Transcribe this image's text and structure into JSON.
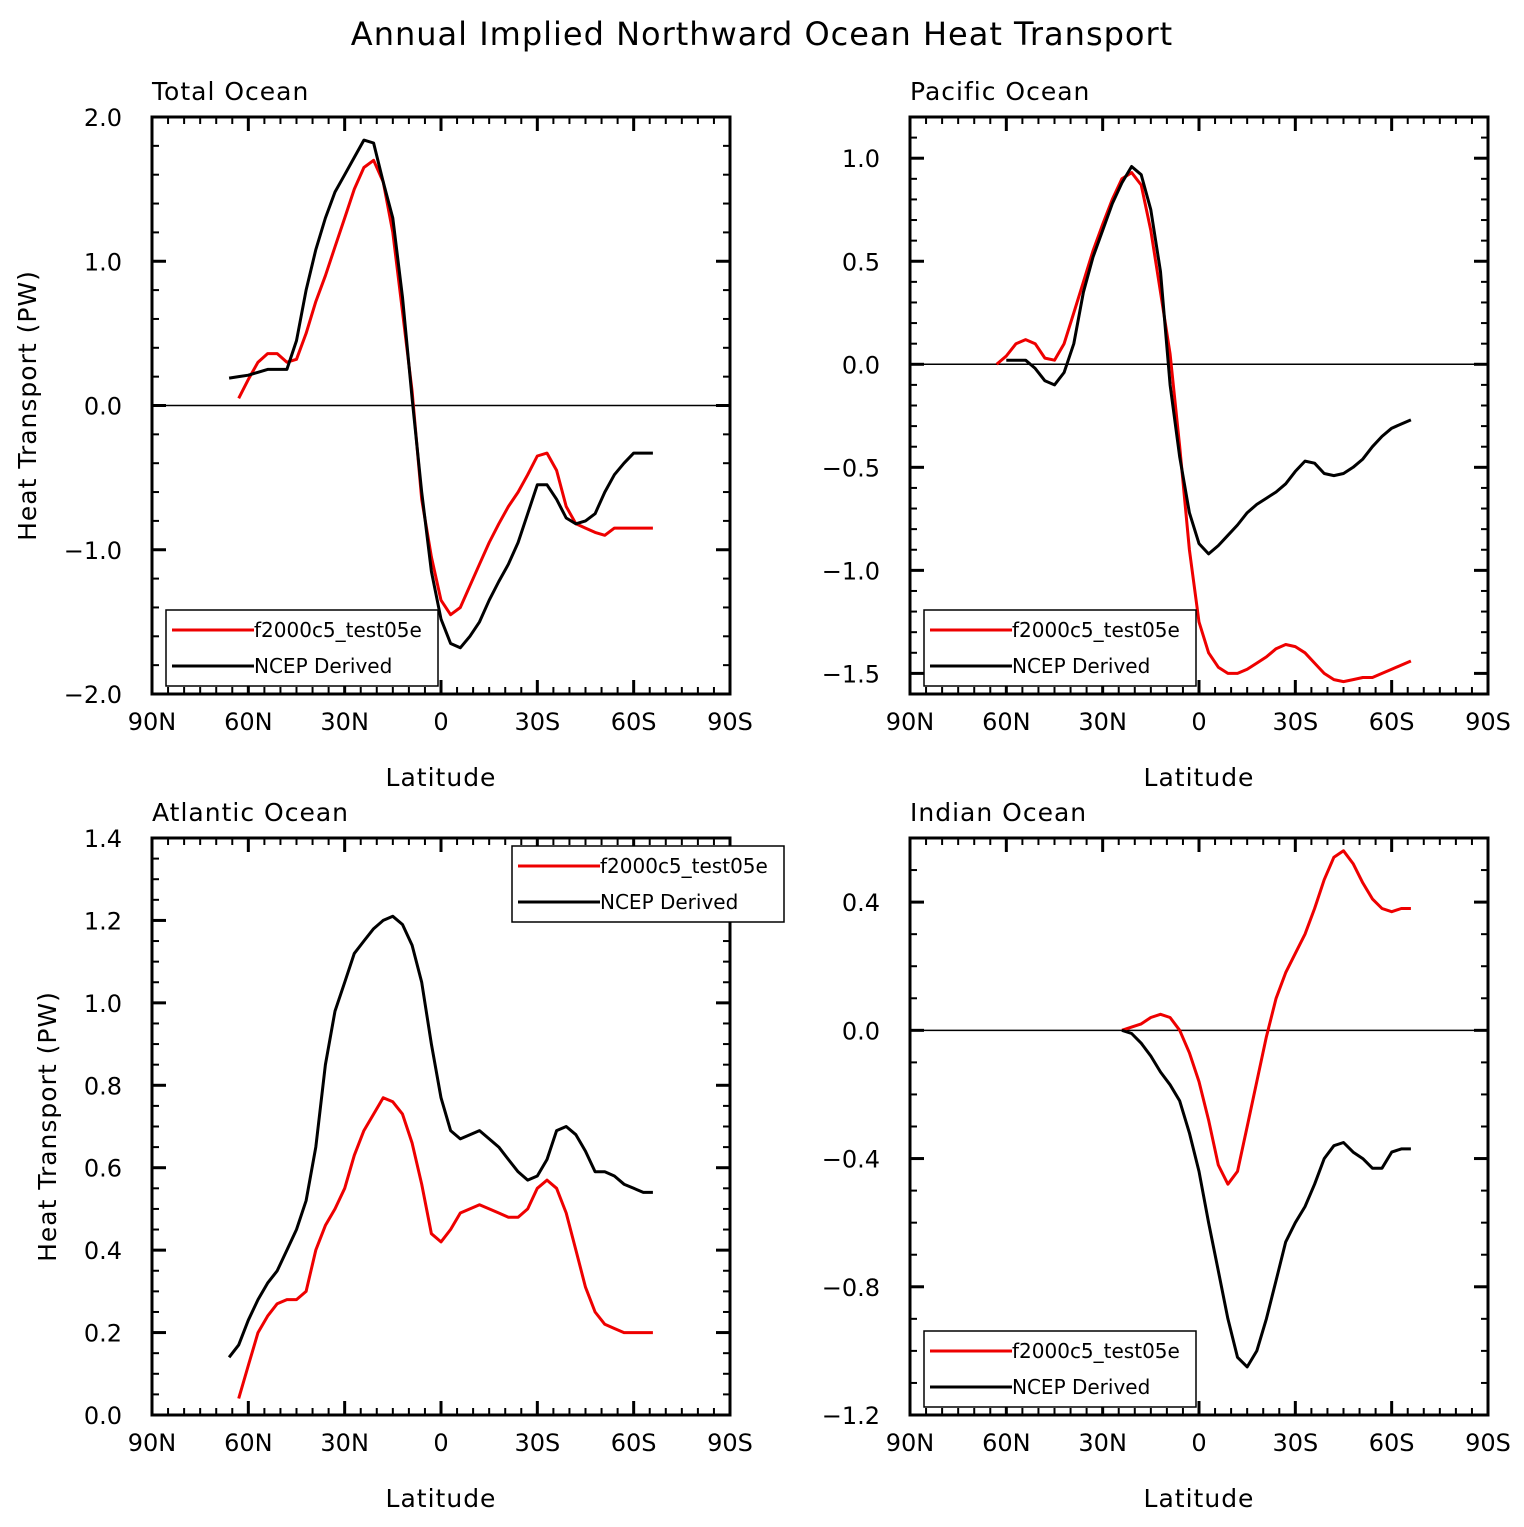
{
  "title": "Annual Implied Northward Ocean Heat Transport",
  "colors": {
    "model": "#ee0000",
    "obs": "#000000"
  },
  "chart_data": [
    {
      "type": "line",
      "id": "total",
      "title": "Total Ocean",
      "xlabel": "Latitude",
      "ylabel": "Heat Transport (PW)",
      "xlim": [
        90,
        -90
      ],
      "ylim": [
        -2.0,
        2.0
      ],
      "xticks": [
        90,
        60,
        30,
        0,
        -30,
        -60,
        -90
      ],
      "xtick_labels": [
        "90N",
        "60N",
        "30N",
        "0",
        "30S",
        "60S",
        "90S"
      ],
      "yticks": [
        -2.0,
        -1.0,
        0.0,
        1.0,
        2.0
      ],
      "ytick_labels": [
        "−2.0",
        "−1.0",
        "0.0",
        "1.0",
        "2.0"
      ],
      "y_minor": 0.2,
      "legend_position": "bottom-left",
      "series": [
        {
          "name": "f2000c5_test05e",
          "color": "#ee0000",
          "x": [
            63,
            60,
            57,
            54,
            51,
            48,
            45,
            42,
            39,
            36,
            33,
            30,
            27,
            24,
            21,
            18,
            15,
            12,
            9,
            6,
            3,
            0,
            -3,
            -6,
            -9,
            -12,
            -15,
            -18,
            -21,
            -24,
            -27,
            -30,
            -33,
            -36,
            -39,
            -42,
            -45,
            -48,
            -51,
            -54,
            -57,
            -60,
            -63,
            -66
          ],
          "y": [
            0.05,
            0.18,
            0.3,
            0.36,
            0.36,
            0.3,
            0.32,
            0.5,
            0.72,
            0.9,
            1.1,
            1.3,
            1.5,
            1.65,
            1.7,
            1.55,
            1.2,
            0.65,
            0.1,
            -0.65,
            -1.05,
            -1.35,
            -1.45,
            -1.4,
            -1.25,
            -1.1,
            -0.95,
            -0.82,
            -0.7,
            -0.6,
            -0.48,
            -0.35,
            -0.33,
            -0.45,
            -0.7,
            -0.82,
            -0.85,
            -0.88,
            -0.9,
            -0.85,
            -0.85,
            -0.85,
            -0.85,
            -0.85
          ]
        },
        {
          "name": "NCEP Derived",
          "color": "#000000",
          "x": [
            66,
            63,
            60,
            57,
            54,
            51,
            48,
            45,
            42,
            39,
            36,
            33,
            30,
            27,
            24,
            21,
            18,
            15,
            12,
            9,
            6,
            3,
            0,
            -3,
            -6,
            -9,
            -12,
            -15,
            -18,
            -21,
            -24,
            -27,
            -30,
            -33,
            -36,
            -39,
            -42,
            -45,
            -48,
            -51,
            -54,
            -57,
            -60,
            -63,
            -66
          ],
          "y": [
            0.19,
            0.2,
            0.21,
            0.23,
            0.25,
            0.25,
            0.25,
            0.45,
            0.8,
            1.08,
            1.3,
            1.48,
            1.6,
            1.72,
            1.84,
            1.82,
            1.55,
            1.3,
            0.75,
            0.05,
            -0.6,
            -1.15,
            -1.48,
            -1.65,
            -1.68,
            -1.6,
            -1.5,
            -1.35,
            -1.22,
            -1.1,
            -0.95,
            -0.75,
            -0.55,
            -0.55,
            -0.65,
            -0.78,
            -0.82,
            -0.8,
            -0.75,
            -0.6,
            -0.48,
            -0.4,
            -0.33,
            -0.33,
            -0.33
          ]
        }
      ]
    },
    {
      "type": "line",
      "id": "pacific",
      "title": "Pacific Ocean",
      "xlabel": "Latitude",
      "ylabel": "",
      "xlim": [
        90,
        -90
      ],
      "ylim": [
        -1.6,
        1.2
      ],
      "xticks": [
        90,
        60,
        30,
        0,
        -30,
        -60,
        -90
      ],
      "xtick_labels": [
        "90N",
        "60N",
        "30N",
        "0",
        "30S",
        "60S",
        "90S"
      ],
      "yticks": [
        -1.5,
        -1.0,
        -0.5,
        0.0,
        0.5,
        1.0
      ],
      "ytick_labels": [
        "−1.5",
        "−1.0",
        "−0.5",
        "0.0",
        "0.5",
        "1.0"
      ],
      "y_minor": 0.1,
      "legend_position": "bottom-left",
      "series": [
        {
          "name": "f2000c5_test05e",
          "color": "#ee0000",
          "x": [
            63,
            60,
            57,
            54,
            51,
            48,
            45,
            42,
            39,
            36,
            33,
            30,
            27,
            24,
            21,
            18,
            15,
            12,
            9,
            6,
            3,
            0,
            -3,
            -6,
            -9,
            -12,
            -15,
            -18,
            -21,
            -24,
            -27,
            -30,
            -33,
            -36,
            -39,
            -42,
            -45,
            -48,
            -51,
            -54,
            -57,
            -60,
            -63,
            -66
          ],
          "y": [
            0.0,
            0.04,
            0.1,
            0.12,
            0.1,
            0.03,
            0.02,
            0.1,
            0.25,
            0.4,
            0.55,
            0.68,
            0.8,
            0.9,
            0.93,
            0.87,
            0.65,
            0.35,
            0.05,
            -0.4,
            -0.9,
            -1.25,
            -1.4,
            -1.47,
            -1.5,
            -1.5,
            -1.48,
            -1.45,
            -1.42,
            -1.38,
            -1.36,
            -1.37,
            -1.4,
            -1.45,
            -1.5,
            -1.53,
            -1.54,
            -1.53,
            -1.52,
            -1.52,
            -1.5,
            -1.48,
            -1.46,
            -1.44
          ]
        },
        {
          "name": "NCEP Derived",
          "color": "#000000",
          "x": [
            60,
            57,
            54,
            51,
            48,
            45,
            42,
            39,
            36,
            33,
            30,
            27,
            24,
            21,
            18,
            15,
            12,
            9,
            6,
            3,
            0,
            -3,
            -6,
            -9,
            -12,
            -15,
            -18,
            -21,
            -24,
            -27,
            -30,
            -33,
            -36,
            -39,
            -42,
            -45,
            -48,
            -51,
            -54,
            -57,
            -60,
            -63,
            -66
          ],
          "y": [
            0.02,
            0.02,
            0.02,
            -0.02,
            -0.08,
            -0.1,
            -0.04,
            0.1,
            0.35,
            0.52,
            0.65,
            0.78,
            0.88,
            0.96,
            0.92,
            0.75,
            0.45,
            -0.1,
            -0.45,
            -0.72,
            -0.87,
            -0.92,
            -0.88,
            -0.83,
            -0.78,
            -0.72,
            -0.68,
            -0.65,
            -0.62,
            -0.58,
            -0.52,
            -0.47,
            -0.48,
            -0.53,
            -0.54,
            -0.53,
            -0.5,
            -0.46,
            -0.4,
            -0.35,
            -0.31,
            -0.29,
            -0.27
          ]
        }
      ]
    },
    {
      "type": "line",
      "id": "atlantic",
      "title": "Atlantic Ocean",
      "xlabel": "Latitude",
      "ylabel": "Heat Transport (PW)",
      "xlim": [
        90,
        -90
      ],
      "ylim": [
        0.0,
        1.4
      ],
      "xticks": [
        90,
        60,
        30,
        0,
        -30,
        -60,
        -90
      ],
      "xtick_labels": [
        "90N",
        "60N",
        "30N",
        "0",
        "30S",
        "60S",
        "90S"
      ],
      "yticks": [
        0.0,
        0.2,
        0.4,
        0.6,
        0.8,
        1.0,
        1.2,
        1.4
      ],
      "ytick_labels": [
        "0.0",
        "0.2",
        "0.4",
        "0.6",
        "0.8",
        "1.0",
        "1.2",
        "1.4"
      ],
      "y_minor": 0.05,
      "legend_position": "top-right",
      "series": [
        {
          "name": "f2000c5_test05e",
          "color": "#ee0000",
          "x": [
            63,
            60,
            57,
            54,
            51,
            48,
            45,
            42,
            39,
            36,
            33,
            30,
            27,
            24,
            21,
            18,
            15,
            12,
            9,
            6,
            3,
            0,
            -3,
            -6,
            -9,
            -12,
            -15,
            -18,
            -21,
            -24,
            -27,
            -30,
            -33,
            -36,
            -39,
            -42,
            -45,
            -48,
            -51,
            -54,
            -57,
            -60,
            -63,
            -66
          ],
          "y": [
            0.04,
            0.12,
            0.2,
            0.24,
            0.27,
            0.28,
            0.28,
            0.3,
            0.4,
            0.46,
            0.5,
            0.55,
            0.63,
            0.69,
            0.73,
            0.77,
            0.76,
            0.73,
            0.66,
            0.56,
            0.44,
            0.42,
            0.45,
            0.49,
            0.5,
            0.51,
            0.5,
            0.49,
            0.48,
            0.48,
            0.5,
            0.55,
            0.57,
            0.55,
            0.49,
            0.4,
            0.31,
            0.25,
            0.22,
            0.21,
            0.2,
            0.2,
            0.2,
            0.2
          ]
        },
        {
          "name": "NCEP Derived",
          "color": "#000000",
          "x": [
            66,
            63,
            60,
            57,
            54,
            51,
            48,
            45,
            42,
            39,
            36,
            33,
            30,
            27,
            24,
            21,
            18,
            15,
            12,
            9,
            6,
            3,
            0,
            -3,
            -6,
            -9,
            -12,
            -15,
            -18,
            -21,
            -24,
            -27,
            -30,
            -33,
            -36,
            -39,
            -42,
            -45,
            -48,
            -51,
            -54,
            -57,
            -60,
            -63,
            -66
          ],
          "y": [
            0.14,
            0.17,
            0.23,
            0.28,
            0.32,
            0.35,
            0.4,
            0.45,
            0.52,
            0.65,
            0.85,
            0.98,
            1.05,
            1.12,
            1.15,
            1.18,
            1.2,
            1.21,
            1.19,
            1.14,
            1.05,
            0.9,
            0.77,
            0.69,
            0.67,
            0.68,
            0.69,
            0.67,
            0.65,
            0.62,
            0.59,
            0.57,
            0.58,
            0.62,
            0.69,
            0.7,
            0.68,
            0.64,
            0.59,
            0.59,
            0.58,
            0.56,
            0.55,
            0.54,
            0.54
          ]
        }
      ]
    },
    {
      "type": "line",
      "id": "indian",
      "title": "Indian Ocean",
      "xlabel": "Latitude",
      "ylabel": "",
      "xlim": [
        90,
        -90
      ],
      "ylim": [
        -1.2,
        0.6
      ],
      "xticks": [
        90,
        60,
        30,
        0,
        -30,
        -60,
        -90
      ],
      "xtick_labels": [
        "90N",
        "60N",
        "30N",
        "0",
        "30S",
        "60S",
        "90S"
      ],
      "yticks": [
        -1.2,
        -0.8,
        -0.4,
        0.0,
        0.4
      ],
      "ytick_labels": [
        "−1.2",
        "−0.8",
        "−0.4",
        "0.0",
        "0.4"
      ],
      "y_minor": 0.1,
      "legend_position": "bottom-left",
      "series": [
        {
          "name": "f2000c5_test05e",
          "color": "#ee0000",
          "x": [
            24,
            21,
            18,
            15,
            12,
            9,
            6,
            3,
            0,
            -3,
            -6,
            -9,
            -12,
            -15,
            -18,
            -21,
            -24,
            -27,
            -30,
            -33,
            -36,
            -39,
            -42,
            -45,
            -48,
            -51,
            -54,
            -57,
            -60,
            -63,
            -66
          ],
          "y": [
            0.0,
            0.01,
            0.02,
            0.04,
            0.05,
            0.04,
            0.0,
            -0.07,
            -0.16,
            -0.28,
            -0.42,
            -0.48,
            -0.44,
            -0.3,
            -0.16,
            -0.02,
            0.1,
            0.18,
            0.24,
            0.3,
            0.38,
            0.47,
            0.54,
            0.56,
            0.52,
            0.46,
            0.41,
            0.38,
            0.37,
            0.38,
            0.38
          ]
        },
        {
          "name": "NCEP Derived",
          "color": "#000000",
          "x": [
            24,
            21,
            18,
            15,
            12,
            9,
            6,
            3,
            0,
            -3,
            -6,
            -9,
            -12,
            -15,
            -18,
            -21,
            -24,
            -27,
            -30,
            -33,
            -36,
            -39,
            -42,
            -45,
            -48,
            -51,
            -54,
            -57,
            -60,
            -63,
            -66
          ],
          "y": [
            0.0,
            -0.01,
            -0.04,
            -0.08,
            -0.13,
            -0.17,
            -0.22,
            -0.32,
            -0.44,
            -0.6,
            -0.75,
            -0.9,
            -1.02,
            -1.05,
            -1.0,
            -0.9,
            -0.78,
            -0.66,
            -0.6,
            -0.55,
            -0.48,
            -0.4,
            -0.36,
            -0.35,
            -0.38,
            -0.4,
            -0.43,
            -0.43,
            -0.38,
            -0.37,
            -0.37
          ]
        }
      ]
    }
  ]
}
